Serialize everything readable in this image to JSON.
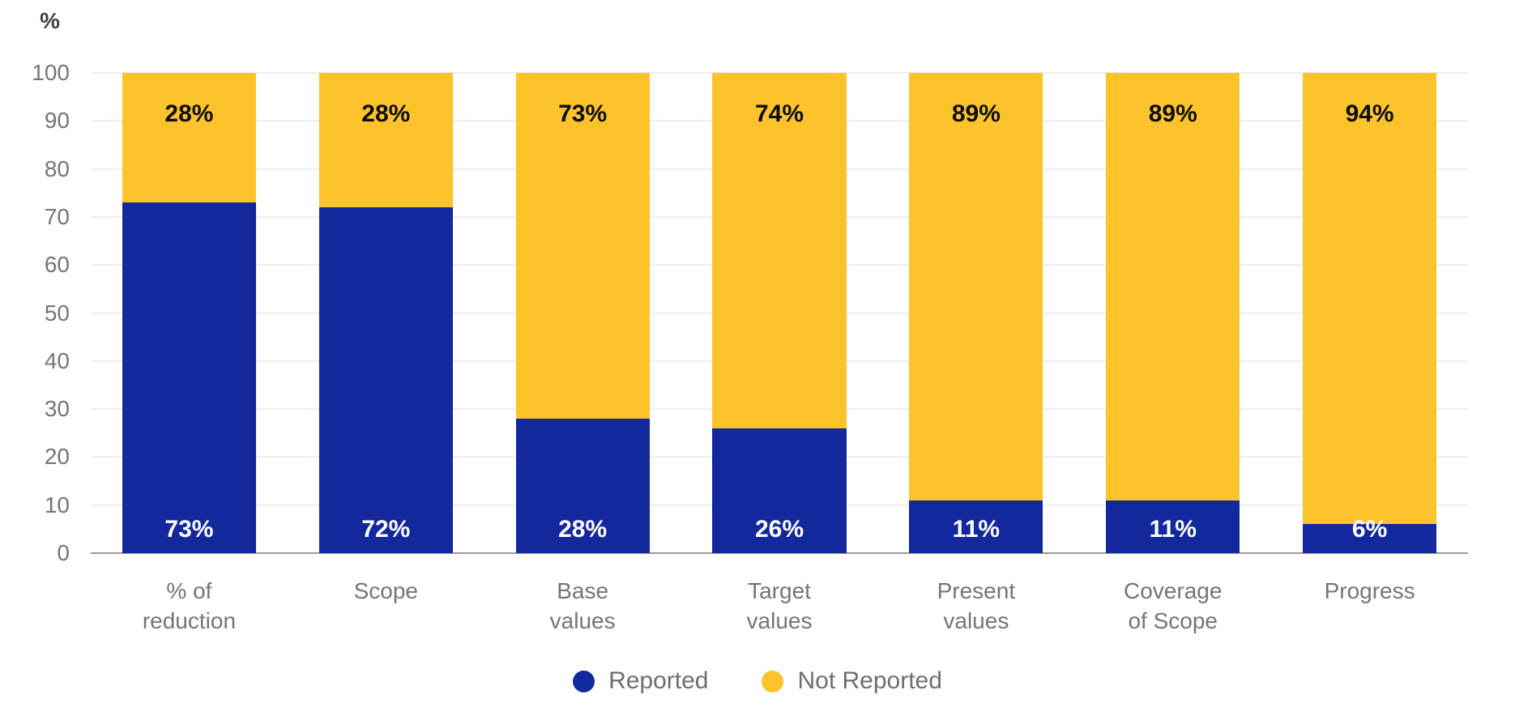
{
  "chart_data": {
    "type": "bar",
    "stacked": true,
    "title": "",
    "xlabel": "",
    "ylabel": "%",
    "ylim": [
      0,
      100
    ],
    "yticks": [
      0,
      10,
      20,
      30,
      40,
      50,
      60,
      70,
      80,
      90,
      100
    ],
    "grid": true,
    "legend_position": "bottom",
    "categories": [
      "% of reduction",
      "Scope",
      "Base values",
      "Target values",
      "Present values",
      "Coverage of Scope",
      "Progress"
    ],
    "category_lines": [
      [
        "% of",
        "reduction"
      ],
      [
        "Scope"
      ],
      [
        "Base",
        "values"
      ],
      [
        "Target",
        "values"
      ],
      [
        "Present",
        "values"
      ],
      [
        "Coverage",
        "of Scope"
      ],
      [
        "Progress"
      ]
    ],
    "series": [
      {
        "name": "Reported",
        "color": "#14289E",
        "values": [
          73,
          72,
          28,
          26,
          11,
          11,
          6
        ],
        "labels": [
          "73%",
          "72%",
          "28%",
          "26%",
          "11%",
          "11%",
          "6%"
        ]
      },
      {
        "name": "Not Reported",
        "color": "#FDC32B",
        "values": [
          28,
          28,
          73,
          74,
          89,
          89,
          94
        ],
        "labels": [
          "28%",
          "28%",
          "73%",
          "74%",
          "89%",
          "89%",
          "94%"
        ]
      }
    ]
  },
  "colors": {
    "reported": "#14289E",
    "not_reported": "#FDC32B",
    "gridline": "#dcdcdc",
    "axis_line": "#9a9a9a",
    "tick_text": "#757575",
    "legend_text": "#6e6e6e",
    "background": "#ffffff"
  }
}
